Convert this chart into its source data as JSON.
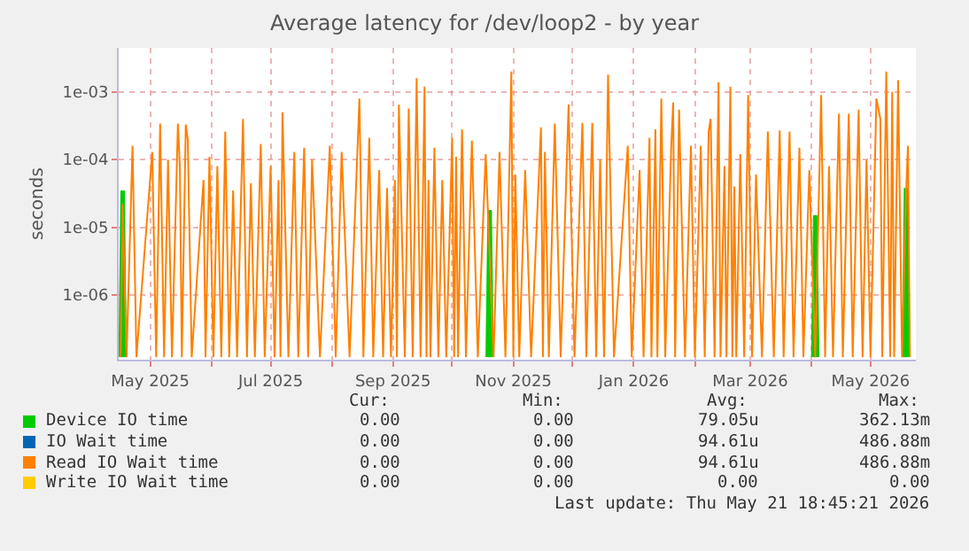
{
  "chart_data": {
    "type": "line",
    "title": "Average latency for /dev/loop2 - by year",
    "ylabel": "seconds",
    "log": "y",
    "grid": true,
    "legend": "bottom",
    "marker": "none",
    "line_style": "solid",
    "xlim": [
      "2025-04-15",
      "2026-05-24"
    ],
    "ylim": [
      1.1e-07,
      0.0045
    ],
    "yticks": [
      {
        "value": 1e-06,
        "label": "1e-06"
      },
      {
        "value": 1e-05,
        "label": "1e-05"
      },
      {
        "value": 0.0001,
        "label": "1e-04"
      },
      {
        "value": 0.001,
        "label": "1e-03"
      }
    ],
    "xticks": [
      {
        "value": "2025-05-01",
        "label": "May 2025"
      },
      {
        "value": "2025-06-01",
        "label": null
      },
      {
        "value": "2025-07-01",
        "label": "Jul 2025"
      },
      {
        "value": "2025-08-01",
        "label": null
      },
      {
        "value": "2025-09-01",
        "label": "Sep 2025"
      },
      {
        "value": "2025-10-01",
        "label": null
      },
      {
        "value": "2025-11-01",
        "label": "Nov 2025"
      },
      {
        "value": "2025-12-01",
        "label": null
      },
      {
        "value": "2026-01-01",
        "label": "Jan 2026"
      },
      {
        "value": "2026-02-01",
        "label": null
      },
      {
        "value": "2026-03-01",
        "label": "Mar 2026"
      },
      {
        "value": "2026-04-01",
        "label": null
      },
      {
        "value": "2026-05-01",
        "label": "May 2026"
      }
    ],
    "series": [
      {
        "name": "Device IO time",
        "color": "#00cc00",
        "x": [
          "2025-04-16",
          "2025-04-17",
          "2025-04-18",
          "2025-06-01",
          "2025-10-19",
          "2025-10-20",
          "2025-10-21",
          "2026-01-01",
          "2026-04-02",
          "2026-04-03",
          "2026-04-04",
          "2026-05-01",
          "2026-05-18",
          "2026-05-19",
          "2026-05-20"
        ],
        "values": [
          1.2e-07,
          3.5e-05,
          1.2e-07,
          null,
          1.2e-07,
          1.8e-05,
          1.2e-07,
          null,
          1.2e-07,
          1.5e-05,
          1.2e-07,
          null,
          1.2e-07,
          3.8e-05,
          1.2e-07
        ]
      },
      {
        "name": "IO Wait time",
        "color": "#0066b3"
      },
      {
        "name": "Read IO Wait time",
        "color": "#ff8000",
        "x": [
          "2025-04-16",
          "2025-04-17",
          "2025-04-19",
          "2025-04-22",
          "2025-04-24",
          "2025-05-02",
          "2025-05-04",
          "2025-05-06",
          "2025-05-08",
          "2025-05-10",
          "2025-05-12",
          "2025-05-15",
          "2025-05-16",
          "2025-05-17",
          "2025-05-19",
          "2025-05-20",
          "2025-05-22",
          "2025-05-28",
          "2025-05-29",
          "2025-05-31",
          "2025-06-02",
          "2025-06-04",
          "2025-06-06",
          "2025-06-08",
          "2025-06-10",
          "2025-06-12",
          "2025-06-14",
          "2025-06-17",
          "2025-06-19",
          "2025-06-21",
          "2025-06-23",
          "2025-06-26",
          "2025-06-28",
          "2025-07-01",
          "2025-07-03",
          "2025-07-05",
          "2025-07-06",
          "2025-07-07",
          "2025-07-10",
          "2025-07-13",
          "2025-07-15",
          "2025-07-18",
          "2025-07-20",
          "2025-07-22",
          "2025-07-26",
          "2025-07-31",
          "2025-08-03",
          "2025-08-06",
          "2025-08-10",
          "2025-08-15",
          "2025-08-17",
          "2025-08-20",
          "2025-08-22",
          "2025-08-25",
          "2025-08-27",
          "2025-08-29",
          "2025-08-31",
          "2025-09-02",
          "2025-09-03",
          "2025-09-04",
          "2025-09-07",
          "2025-09-09",
          "2025-09-11",
          "2025-09-13",
          "2025-09-15",
          "2025-09-17",
          "2025-09-18",
          "2025-09-19",
          "2025-09-20",
          "2025-09-22",
          "2025-09-24",
          "2025-09-26",
          "2025-09-28",
          "2025-10-01",
          "2025-10-02",
          "2025-10-03",
          "2025-10-04",
          "2025-10-06",
          "2025-10-08",
          "2025-10-11",
          "2025-10-14",
          "2025-10-18",
          "2025-10-22",
          "2025-10-25",
          "2025-10-28",
          "2025-10-31",
          "2025-11-01",
          "2025-11-02",
          "2025-11-04",
          "2025-11-07",
          "2025-11-10",
          "2025-11-15",
          "2025-11-16",
          "2025-11-17",
          "2025-11-19",
          "2025-11-22",
          "2025-11-25",
          "2025-11-29",
          "2025-12-02",
          "2025-12-06",
          "2025-12-08",
          "2025-12-11",
          "2025-12-13",
          "2025-12-15",
          "2025-12-17",
          "2025-12-19",
          "2025-12-22",
          "2025-12-29",
          "2025-12-31",
          "2026-01-04",
          "2026-01-06",
          "2026-01-09",
          "2026-01-10",
          "2026-01-12",
          "2026-01-13",
          "2026-01-15",
          "2026-01-17",
          "2026-01-20",
          "2026-01-21",
          "2026-01-22",
          "2026-01-24",
          "2026-01-27",
          "2026-01-30",
          "2026-02-01",
          "2026-02-04",
          "2026-02-06",
          "2026-02-08",
          "2026-02-09",
          "2026-02-11",
          "2026-02-13",
          "2026-02-14",
          "2026-02-16",
          "2026-02-17",
          "2026-02-19",
          "2026-02-20",
          "2026-02-21",
          "2026-02-22",
          "2026-02-24",
          "2026-02-26",
          "2026-02-28",
          "2026-03-02",
          "2026-03-04",
          "2026-03-07",
          "2026-03-10",
          "2026-03-13",
          "2026-03-16",
          "2026-03-18",
          "2026-03-21",
          "2026-03-23",
          "2026-03-26",
          "2026-03-28",
          "2026-03-31",
          "2026-04-03",
          "2026-04-06",
          "2026-04-08",
          "2026-04-10",
          "2026-04-12",
          "2026-04-15",
          "2026-04-17",
          "2026-04-20",
          "2026-04-22",
          "2026-04-25",
          "2026-04-27",
          "2026-04-29",
          "2026-05-01",
          "2026-05-04",
          "2026-05-06",
          "2026-05-07",
          "2026-05-09",
          "2026-05-11",
          "2026-05-12",
          "2026-05-13",
          "2026-05-15",
          "2026-05-17",
          "2026-05-19",
          "2026-05-20",
          "2026-05-21"
        ],
        "values": [
          1.2e-07,
          2.2e-05,
          1.2e-07,
          0.00016,
          1.2e-07,
          0.00013,
          1.2e-07,
          0.00034,
          1.2e-07,
          0.0001,
          1.2e-07,
          0.00034,
          8e-05,
          1.2e-07,
          0.00033,
          0.0002,
          1.2e-07,
          5e-05,
          1.2e-07,
          0.00011,
          1.2e-07,
          8e-05,
          1.2e-07,
          0.00026,
          1.2e-07,
          3.5e-05,
          1.2e-07,
          0.0004,
          1.2e-07,
          4.5e-05,
          1.2e-07,
          0.00017,
          1.2e-07,
          8e-05,
          1.2e-07,
          5e-05,
          1.2e-07,
          0.0005,
          1.2e-07,
          0.00013,
          1.2e-07,
          0.00015,
          1.2e-07,
          0.0001,
          1.2e-07,
          0.00016,
          1.2e-07,
          0.00013,
          1.2e-07,
          0.0008,
          1.2e-07,
          0.00021,
          1.2e-07,
          7e-05,
          1.2e-07,
          3.8e-05,
          1.2e-07,
          5e-05,
          1.2e-07,
          0.00065,
          1.2e-07,
          0.00057,
          1.2e-07,
          0.0016,
          1.2e-07,
          0.0012,
          1.2e-07,
          5e-05,
          1.2e-07,
          0.00015,
          1.2e-07,
          5e-05,
          1.2e-07,
          0.00021,
          1.2e-07,
          0.00011,
          1.2e-07,
          0.00028,
          1.2e-07,
          0.00019,
          1.2e-07,
          0.00012,
          1.2e-07,
          0.00013,
          1.2e-07,
          0.002,
          1.2e-07,
          6e-05,
          1.2e-07,
          7e-05,
          1.2e-07,
          0.0003,
          1.2e-07,
          0.00013,
          1.2e-07,
          0.00034,
          1.2e-07,
          0.00065,
          1.2e-07,
          0.00035,
          1.2e-07,
          0.00035,
          1.2e-07,
          0.0001,
          1.2e-07,
          0.0018,
          1.2e-07,
          0.00016,
          1.2e-07,
          7e-05,
          1.2e-07,
          0.00021,
          1.2e-07,
          0.00028,
          1.2e-07,
          0.0008,
          1.2e-07,
          0.00015,
          0.0007,
          1.2e-07,
          0.00055,
          1.2e-07,
          0.00016,
          1.2e-07,
          0.00016,
          1.2e-07,
          0.00026,
          0.0004,
          1.2e-07,
          0.0014,
          1.2e-07,
          8e-05,
          1.2e-07,
          0.0012,
          1.2e-07,
          4e-05,
          1.2e-07,
          0.00012,
          1.2e-07,
          0.0009,
          1.2e-07,
          6e-05,
          1.2e-07,
          0.00026,
          1.2e-07,
          0.00027,
          1.2e-07,
          0.00026,
          1.2e-07,
          0.00015,
          1.2e-07,
          7e-05,
          1.2e-07,
          0.0009,
          1.2e-07,
          8e-05,
          1.2e-07,
          0.00048,
          1.2e-07,
          0.00048,
          1.2e-07,
          0.00055,
          1.2e-07,
          0.0001,
          1.2e-07,
          0.0008,
          0.0004,
          1.2e-07,
          0.002,
          1.2e-07,
          0.001,
          1.2e-07,
          0.0015,
          1.2e-07,
          3e-05,
          0.00016,
          1.2e-07
        ]
      },
      {
        "name": "Write IO Wait time",
        "color": "#ffcc00"
      }
    ],
    "annotations": [
      "Cur:",
      "Min:",
      "Avg:",
      "Max:",
      "0.00",
      "0.00",
      "79.05u",
      "362.13m",
      "0.00",
      "0.00",
      "94.61u",
      "486.88m",
      "0.00",
      "0.00",
      "94.61u",
      "486.88m",
      "0.00",
      "0.00",
      "0.00",
      "0.00",
      "Last update: Thu May 21 18:45:21 2026"
    ]
  }
}
